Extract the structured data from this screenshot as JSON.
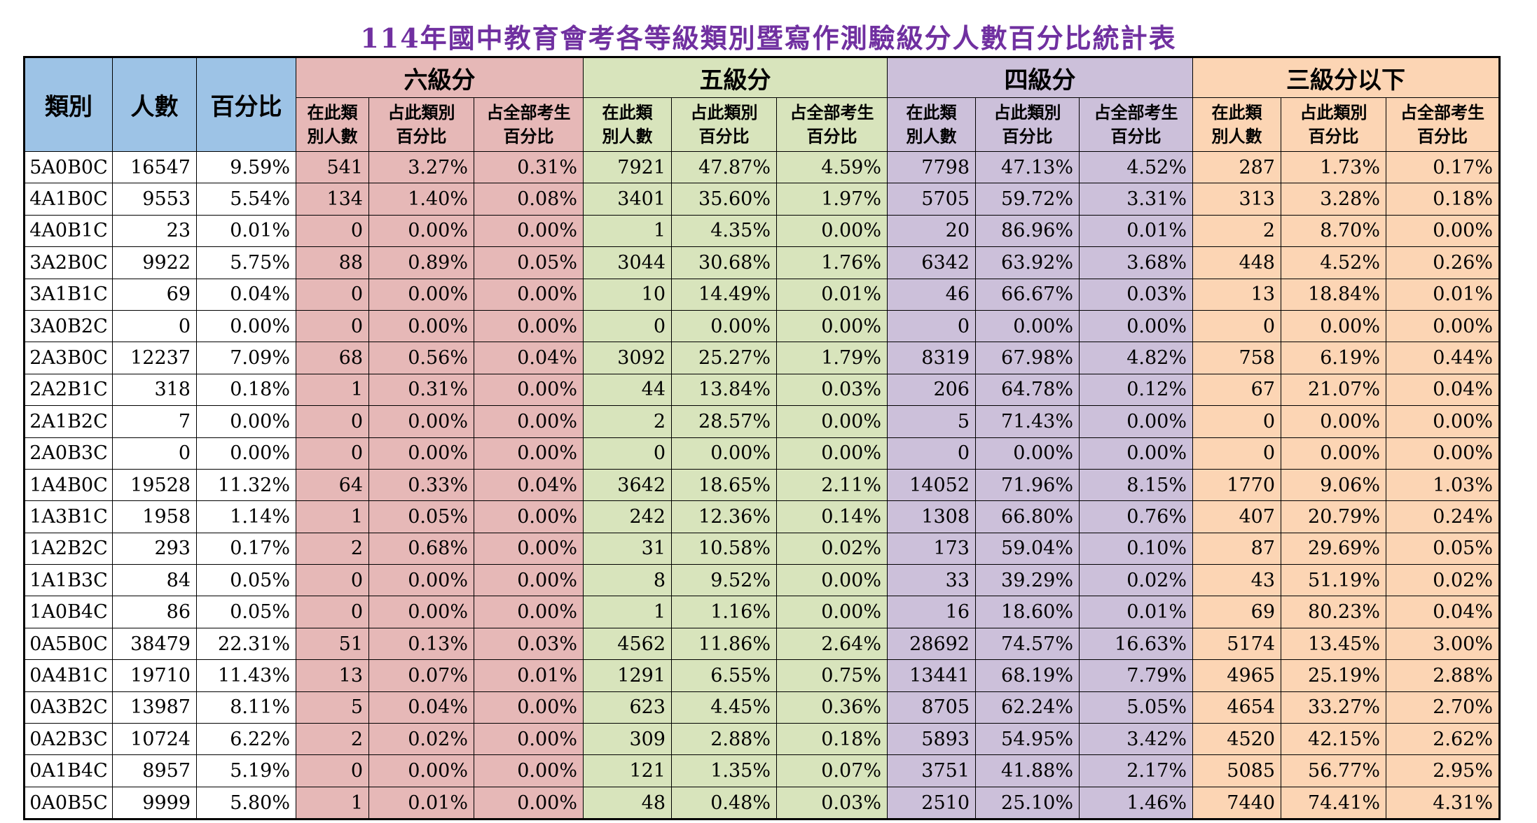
{
  "title": "114年國中教育會考各等級類別暨寫作測驗級分人數百分比統計表",
  "headers": {
    "category": "類別",
    "count": "人數",
    "percent": "百分比",
    "groups": [
      "六級分",
      "五級分",
      "四級分",
      "三級分以下"
    ],
    "sub": [
      [
        "在此類",
        "別人數"
      ],
      [
        "占此類別",
        "百分比"
      ],
      [
        "占全部考生",
        "百分比"
      ]
    ]
  },
  "colors": {
    "title": "#7030a0",
    "left_header": "#9dc3e6",
    "level6": "#e6b8b7",
    "level5": "#d8e4bc",
    "level4": "#ccc0da",
    "level3_below": "#fcd5b4"
  },
  "rows": [
    [
      "5A0B0C",
      "16547",
      "9.59%",
      "541",
      "3.27%",
      "0.31%",
      "7921",
      "47.87%",
      "4.59%",
      "7798",
      "47.13%",
      "4.52%",
      "287",
      "1.73%",
      "0.17%"
    ],
    [
      "4A1B0C",
      "9553",
      "5.54%",
      "134",
      "1.40%",
      "0.08%",
      "3401",
      "35.60%",
      "1.97%",
      "5705",
      "59.72%",
      "3.31%",
      "313",
      "3.28%",
      "0.18%"
    ],
    [
      "4A0B1C",
      "23",
      "0.01%",
      "0",
      "0.00%",
      "0.00%",
      "1",
      "4.35%",
      "0.00%",
      "20",
      "86.96%",
      "0.01%",
      "2",
      "8.70%",
      "0.00%"
    ],
    [
      "3A2B0C",
      "9922",
      "5.75%",
      "88",
      "0.89%",
      "0.05%",
      "3044",
      "30.68%",
      "1.76%",
      "6342",
      "63.92%",
      "3.68%",
      "448",
      "4.52%",
      "0.26%"
    ],
    [
      "3A1B1C",
      "69",
      "0.04%",
      "0",
      "0.00%",
      "0.00%",
      "10",
      "14.49%",
      "0.01%",
      "46",
      "66.67%",
      "0.03%",
      "13",
      "18.84%",
      "0.01%"
    ],
    [
      "3A0B2C",
      "0",
      "0.00%",
      "0",
      "0.00%",
      "0.00%",
      "0",
      "0.00%",
      "0.00%",
      "0",
      "0.00%",
      "0.00%",
      "0",
      "0.00%",
      "0.00%"
    ],
    [
      "2A3B0C",
      "12237",
      "7.09%",
      "68",
      "0.56%",
      "0.04%",
      "3092",
      "25.27%",
      "1.79%",
      "8319",
      "67.98%",
      "4.82%",
      "758",
      "6.19%",
      "0.44%"
    ],
    [
      "2A2B1C",
      "318",
      "0.18%",
      "1",
      "0.31%",
      "0.00%",
      "44",
      "13.84%",
      "0.03%",
      "206",
      "64.78%",
      "0.12%",
      "67",
      "21.07%",
      "0.04%"
    ],
    [
      "2A1B2C",
      "7",
      "0.00%",
      "0",
      "0.00%",
      "0.00%",
      "2",
      "28.57%",
      "0.00%",
      "5",
      "71.43%",
      "0.00%",
      "0",
      "0.00%",
      "0.00%"
    ],
    [
      "2A0B3C",
      "0",
      "0.00%",
      "0",
      "0.00%",
      "0.00%",
      "0",
      "0.00%",
      "0.00%",
      "0",
      "0.00%",
      "0.00%",
      "0",
      "0.00%",
      "0.00%"
    ],
    [
      "1A4B0C",
      "19528",
      "11.32%",
      "64",
      "0.33%",
      "0.04%",
      "3642",
      "18.65%",
      "2.11%",
      "14052",
      "71.96%",
      "8.15%",
      "1770",
      "9.06%",
      "1.03%"
    ],
    [
      "1A3B1C",
      "1958",
      "1.14%",
      "1",
      "0.05%",
      "0.00%",
      "242",
      "12.36%",
      "0.14%",
      "1308",
      "66.80%",
      "0.76%",
      "407",
      "20.79%",
      "0.24%"
    ],
    [
      "1A2B2C",
      "293",
      "0.17%",
      "2",
      "0.68%",
      "0.00%",
      "31",
      "10.58%",
      "0.02%",
      "173",
      "59.04%",
      "0.10%",
      "87",
      "29.69%",
      "0.05%"
    ],
    [
      "1A1B3C",
      "84",
      "0.05%",
      "0",
      "0.00%",
      "0.00%",
      "8",
      "9.52%",
      "0.00%",
      "33",
      "39.29%",
      "0.02%",
      "43",
      "51.19%",
      "0.02%"
    ],
    [
      "1A0B4C",
      "86",
      "0.05%",
      "0",
      "0.00%",
      "0.00%",
      "1",
      "1.16%",
      "0.00%",
      "16",
      "18.60%",
      "0.01%",
      "69",
      "80.23%",
      "0.04%"
    ],
    [
      "0A5B0C",
      "38479",
      "22.31%",
      "51",
      "0.13%",
      "0.03%",
      "4562",
      "11.86%",
      "2.64%",
      "28692",
      "74.57%",
      "16.63%",
      "5174",
      "13.45%",
      "3.00%"
    ],
    [
      "0A4B1C",
      "19710",
      "11.43%",
      "13",
      "0.07%",
      "0.01%",
      "1291",
      "6.55%",
      "0.75%",
      "13441",
      "68.19%",
      "7.79%",
      "4965",
      "25.19%",
      "2.88%"
    ],
    [
      "0A3B2C",
      "13987",
      "8.11%",
      "5",
      "0.04%",
      "0.00%",
      "623",
      "4.45%",
      "0.36%",
      "8705",
      "62.24%",
      "5.05%",
      "4654",
      "33.27%",
      "2.70%"
    ],
    [
      "0A2B3C",
      "10724",
      "6.22%",
      "2",
      "0.02%",
      "0.00%",
      "309",
      "2.88%",
      "0.18%",
      "5893",
      "54.95%",
      "3.42%",
      "4520",
      "42.15%",
      "2.62%"
    ],
    [
      "0A1B4C",
      "8957",
      "5.19%",
      "0",
      "0.00%",
      "0.00%",
      "121",
      "1.35%",
      "0.07%",
      "3751",
      "41.88%",
      "2.17%",
      "5085",
      "56.77%",
      "2.95%"
    ],
    [
      "0A0B5C",
      "9999",
      "5.80%",
      "1",
      "0.01%",
      "0.00%",
      "48",
      "0.48%",
      "0.03%",
      "2510",
      "25.10%",
      "1.46%",
      "7440",
      "74.41%",
      "4.31%"
    ]
  ]
}
